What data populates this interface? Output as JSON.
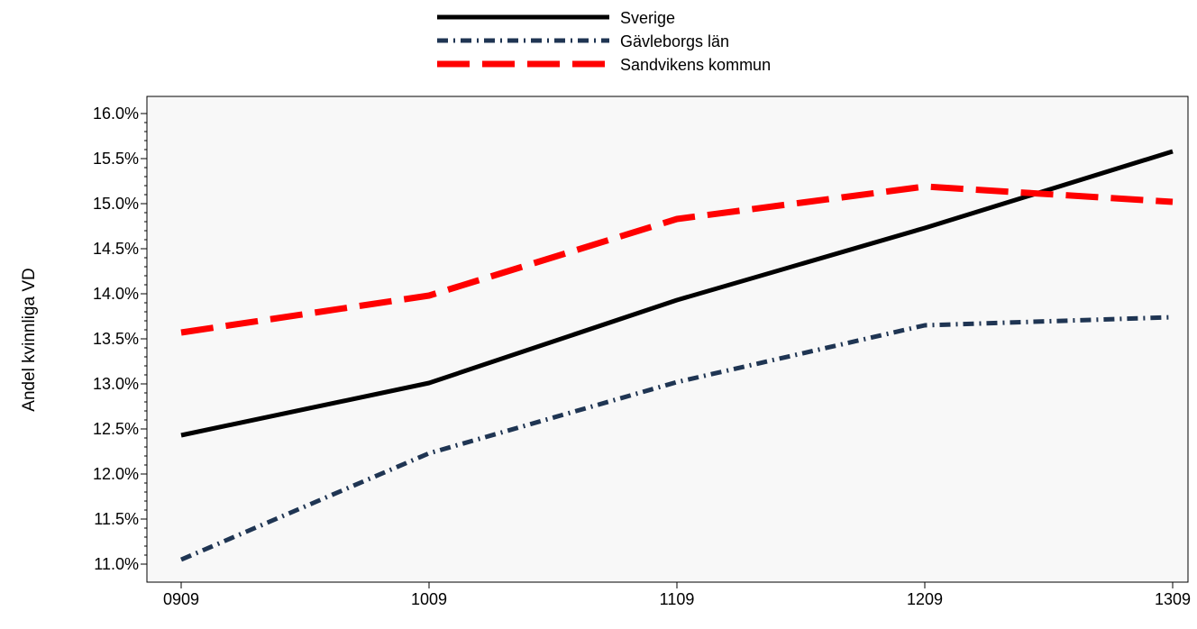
{
  "chart_data": {
    "type": "line",
    "categories": [
      "0909",
      "1009",
      "1109",
      "1209",
      "1309"
    ],
    "ylabel": "Andel kvinnliga VD",
    "xlabel": "",
    "ylim": [
      11.0,
      16.0
    ],
    "y_tick_values": [
      11.0,
      11.5,
      12.0,
      12.5,
      13.0,
      13.5,
      14.0,
      14.5,
      15.0,
      15.5,
      16.0
    ],
    "y_tick_labels": [
      "11.0%",
      "11.5%",
      "12.0%",
      "12.5%",
      "13.0%",
      "13.5%",
      "14.0%",
      "14.5%",
      "15.0%",
      "15.5%",
      "16.0%"
    ],
    "grid": false,
    "legend_position": "top-center",
    "plot_background": "#f8f8f8",
    "series": [
      {
        "name": "Sverige",
        "color": "#000000",
        "style": "solid",
        "values": [
          12.43,
          13.01,
          13.93,
          14.73,
          15.58
        ]
      },
      {
        "name": "Gävleborgs län",
        "color": "#1f3553",
        "style": "dash-dot",
        "values": [
          11.05,
          12.23,
          13.02,
          13.65,
          13.74
        ]
      },
      {
        "name": "Sandvikens kommun",
        "color": "#ff0000",
        "style": "long-dash",
        "values": [
          13.57,
          13.98,
          14.83,
          15.19,
          15.02
        ]
      }
    ]
  }
}
